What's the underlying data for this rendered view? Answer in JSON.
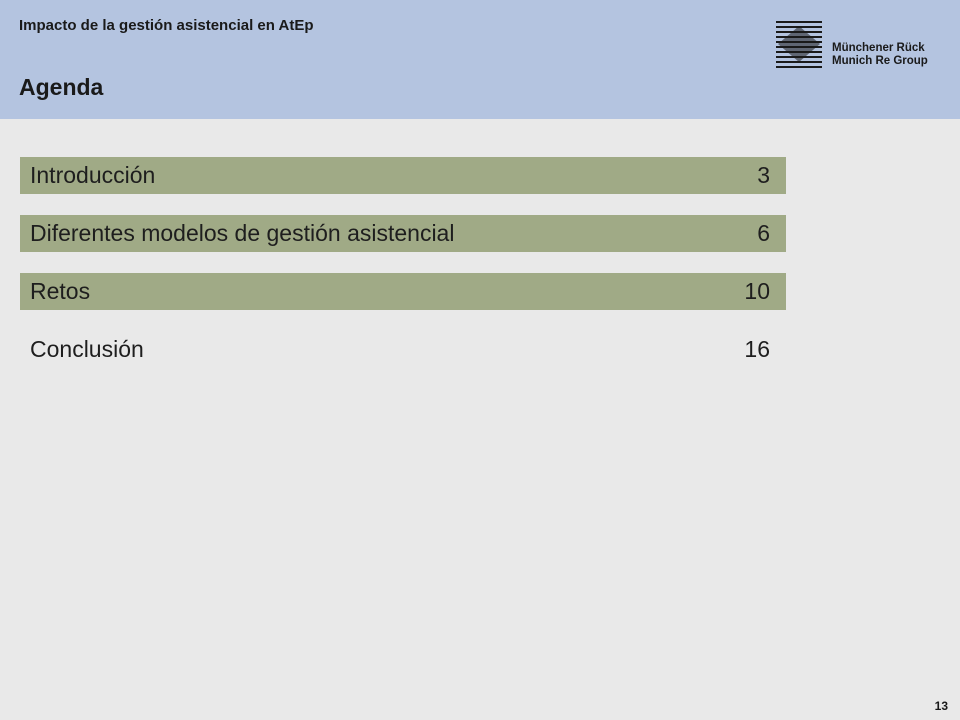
{
  "header": {
    "subtitle": "Impacto de la gestión asistencial en AtEp",
    "title": "Agenda",
    "logo": {
      "line1": "Münchener Rück",
      "line2": "Munich Re Group",
      "icon": "munich-re-logo-icon"
    }
  },
  "agenda": {
    "items": [
      {
        "label": "Introducción",
        "page": "3",
        "highlighted": true
      },
      {
        "label": "Diferentes modelos de gestión asistencial",
        "page": "6",
        "highlighted": true
      },
      {
        "label": "Retos",
        "page": "10",
        "highlighted": true
      },
      {
        "label": "Conclusión",
        "page": "16",
        "highlighted": false
      }
    ]
  },
  "footer": {
    "page_number": "13"
  },
  "colors": {
    "header_bg": "#b4c4e0",
    "body_bg": "#e9e9e9",
    "highlight": "#a0aa86"
  }
}
